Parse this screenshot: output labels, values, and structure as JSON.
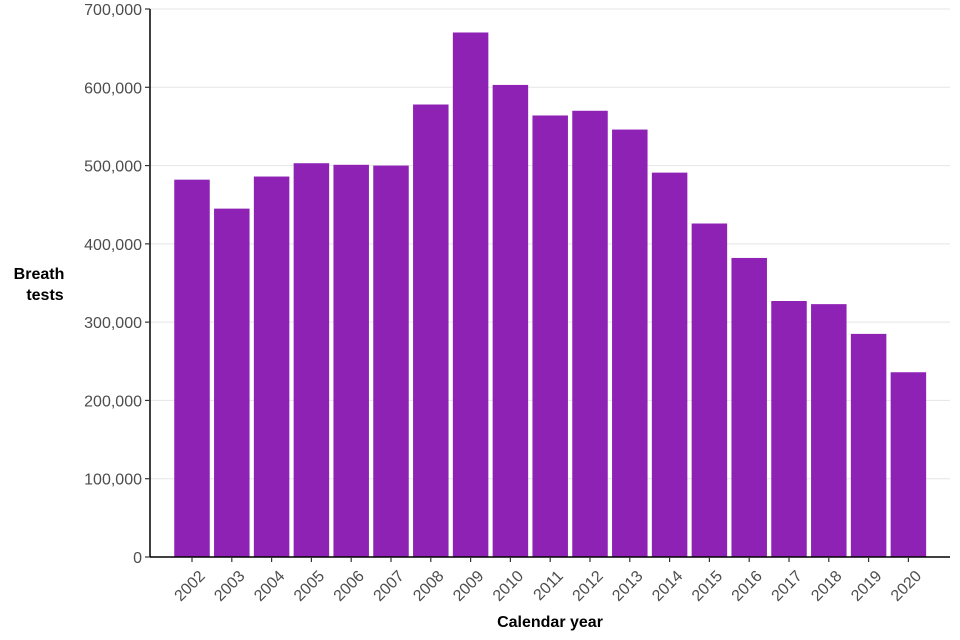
{
  "chart_data": {
    "type": "bar",
    "title": "",
    "xlabel": "Calendar year",
    "ylabel_lines": [
      "Breath",
      "tests"
    ],
    "categories": [
      "2002",
      "2003",
      "2004",
      "2005",
      "2006",
      "2007",
      "2008",
      "2009",
      "2010",
      "2011",
      "2012",
      "2013",
      "2014",
      "2015",
      "2016",
      "2017",
      "2018",
      "2019",
      "2020"
    ],
    "values": [
      482000,
      445000,
      486000,
      503000,
      501000,
      500000,
      578000,
      670000,
      603000,
      564000,
      570000,
      546000,
      491000,
      426000,
      382000,
      327000,
      323000,
      285000,
      236000
    ],
    "ylim": [
      0,
      700000
    ],
    "yticks": [
      0,
      100000,
      200000,
      300000,
      400000,
      500000,
      600000,
      700000
    ],
    "ytick_labels": [
      "0",
      "100,000",
      "200,000",
      "300,000",
      "400,000",
      "500,000",
      "600,000",
      "700,000"
    ],
    "grid": true,
    "bar_color": "#8e22b5"
  }
}
